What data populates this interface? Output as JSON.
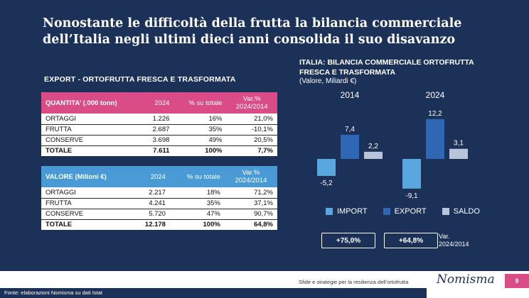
{
  "title": "Nonostante le difficoltà della frutta la bilancia commerciale dell’Italia negli ultimi dieci anni consolida il suo disavanzo",
  "export_section_title": "EXPORT - ORTOFRUTTA FRESCA E TRASFORMATA",
  "table_quantita": {
    "headers": [
      "QUANTITA’ (.000 tonn)",
      "2024",
      "% su totale",
      "Var.%\n2024/2014"
    ],
    "rows": [
      [
        "ORTAGGI",
        "1.226",
        "16%",
        "21,0%"
      ],
      [
        "FRUTTA",
        "2.687",
        "35%",
        "-10,1%"
      ],
      [
        "CONSERVE",
        "3.698",
        "49%",
        "20,5%"
      ],
      [
        "TOTALE",
        "7.611",
        "100%",
        "7,7%"
      ]
    ]
  },
  "table_valore": {
    "headers": [
      "VALORE (Milioni €)",
      "2024",
      "% su totale",
      "Var.%\n2024/2014"
    ],
    "rows": [
      [
        "ORTAGGI",
        "2.217",
        "18%",
        "71,2%"
      ],
      [
        "FRUTTA",
        "4.241",
        "35%",
        "37,1%"
      ],
      [
        "CONSERVE",
        "5.720",
        "47%",
        "90,7%"
      ],
      [
        "TOTALE",
        "12.178",
        "100%",
        "64,8%"
      ]
    ]
  },
  "chart_title": "ITALIA: BILANCIA COMMERCIALE ORTOFRUTTA FRESCA E TRASFORMATA",
  "chart_unit": "(Valore, Miliardi €)",
  "chart_data": {
    "type": "bar",
    "categories": [
      "2014",
      "2024"
    ],
    "series": [
      {
        "name": "IMPORT",
        "values": [
          -5.2,
          -9.1
        ],
        "labels": [
          "-5,2",
          "-9,1"
        ],
        "color": "#5aa7e0"
      },
      {
        "name": "EXPORT",
        "values": [
          7.4,
          12.2
        ],
        "labels": [
          "7,4",
          "12,2"
        ],
        "color": "#2f67b4"
      },
      {
        "name": "SALDO",
        "values": [
          2.2,
          3.1
        ],
        "labels": [
          "2,2",
          "3,1"
        ],
        "color": "#b7c4da"
      }
    ]
  },
  "badges": [
    "+75,0%",
    "+64,8%"
  ],
  "var_note": "Var.\n2024/2014",
  "footer": {
    "text": "Sfide e strategie per la resilienza dell’ortofrutta",
    "logo": "Nomisma",
    "page": "9",
    "source": "Fonte: elaborazioni Nomisma su dati Istat"
  }
}
